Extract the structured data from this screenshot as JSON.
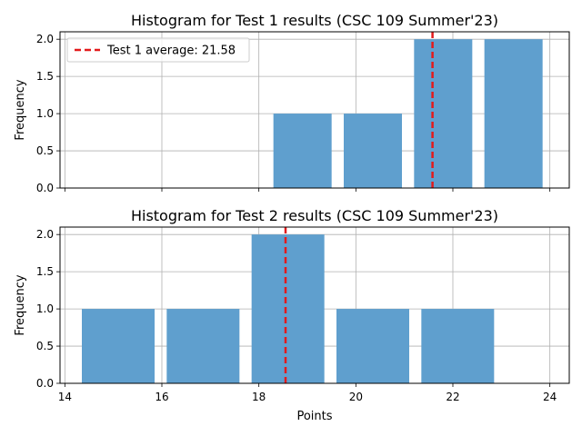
{
  "chart_data": [
    {
      "type": "bar",
      "title": "Histogram for Test 1 results (CSC 109 Summer'23)",
      "xlabel": "",
      "ylabel": "Frequency",
      "bins": [
        {
          "x0": 18.3,
          "x1": 19.5,
          "count": 1
        },
        {
          "x0": 19.75,
          "x1": 20.95,
          "count": 1
        },
        {
          "x0": 21.2,
          "x1": 22.4,
          "count": 2
        },
        {
          "x0": 22.65,
          "x1": 23.85,
          "count": 2
        }
      ],
      "average": 21.58,
      "legend": "Test 1 average: 21.58",
      "legend_position": "upper-left",
      "xlim": [
        13.9,
        24.4
      ],
      "ylim": [
        0,
        2.1
      ],
      "yticks": [
        "0.0",
        "0.5",
        "1.0",
        "1.5",
        "2.0"
      ],
      "show_x_tick_labels": false,
      "grid": true,
      "bar_color": "#5f9fce",
      "avg_color": "#e31a1c"
    },
    {
      "type": "bar",
      "title": "Histogram for Test 2 results (CSC 109 Summer'23)",
      "xlabel": "Points",
      "ylabel": "Frequency",
      "bins": [
        {
          "x0": 14.35,
          "x1": 15.85,
          "count": 1
        },
        {
          "x0": 16.1,
          "x1": 17.6,
          "count": 1
        },
        {
          "x0": 17.85,
          "x1": 19.35,
          "count": 2
        },
        {
          "x0": 19.6,
          "x1": 21.1,
          "count": 1
        },
        {
          "x0": 21.35,
          "x1": 22.85,
          "count": 1
        }
      ],
      "average": 18.55,
      "xlim": [
        13.9,
        24.4
      ],
      "ylim": [
        0,
        2.1
      ],
      "xticks": [
        "14",
        "16",
        "18",
        "20",
        "22",
        "24"
      ],
      "yticks": [
        "0.0",
        "0.5",
        "1.0",
        "1.5",
        "2.0"
      ],
      "grid": true,
      "bar_color": "#5f9fce",
      "avg_color": "#e31a1c"
    }
  ]
}
